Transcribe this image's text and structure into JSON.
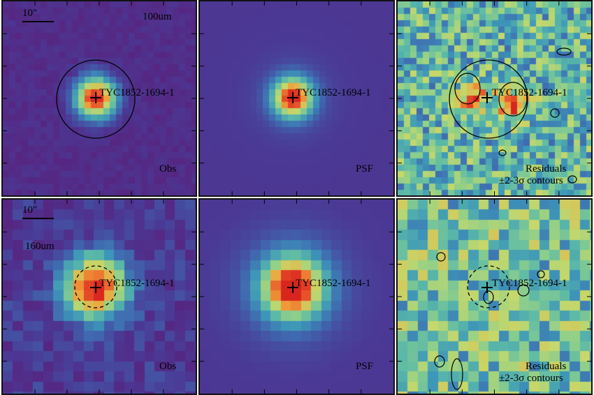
{
  "target_name": "TYC1852-1694-1",
  "scale_bar_label": "10\"",
  "rows": [
    {
      "band": "100um",
      "panels": [
        {
          "kind": "obs",
          "corner_label": "Obs",
          "circle_style": "solid",
          "show_band": true,
          "show_scale": true
        },
        {
          "kind": "psf",
          "corner_label": "PSF",
          "circle_style": "none",
          "show_band": false,
          "show_scale": false
        },
        {
          "kind": "residual",
          "corner_label": "Residuals",
          "corner_label_2": "±2-3σ contours",
          "circle_style": "solid",
          "show_band": false,
          "show_scale": false
        }
      ]
    },
    {
      "band": "160um",
      "panels": [
        {
          "kind": "obs",
          "corner_label": "Obs",
          "circle_style": "dashed",
          "show_band": true,
          "show_scale": true
        },
        {
          "kind": "psf",
          "corner_label": "PSF",
          "circle_style": "none",
          "show_band": false,
          "show_scale": false
        },
        {
          "kind": "residual",
          "corner_label": "Residuals",
          "corner_label_2": "±2-3σ contours",
          "circle_style": "dashed",
          "show_band": false,
          "show_scale": false
        }
      ]
    }
  ],
  "colormap": [
    "#5a1f7a",
    "#4a3a96",
    "#3f6ab0",
    "#3d95b8",
    "#5bb9a8",
    "#8fcf8a",
    "#c6d86a",
    "#f0a23a",
    "#e8532a",
    "#d8261f"
  ]
}
